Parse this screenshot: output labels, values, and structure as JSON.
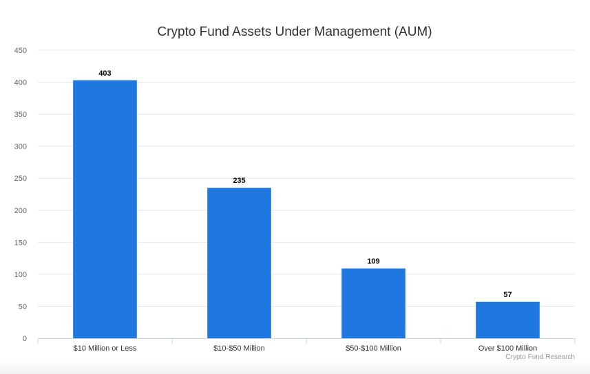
{
  "chart_data": {
    "type": "bar",
    "title": "Crypto Fund Assets Under Management (AUM)",
    "categories": [
      "$10 Million or Less",
      "$10-$50 Million",
      "$50-$100 Million",
      "Over $100 Million"
    ],
    "values": [
      403,
      235,
      109,
      57
    ],
    "xlabel": "",
    "ylabel": "",
    "ylim": [
      0,
      450
    ],
    "yticks": [
      0,
      50,
      100,
      150,
      200,
      250,
      300,
      350,
      400,
      450
    ],
    "grid": true,
    "legend": "none",
    "data_labels": true,
    "bar_color": "#1f77e0",
    "credit": "Crypto Fund Research"
  }
}
